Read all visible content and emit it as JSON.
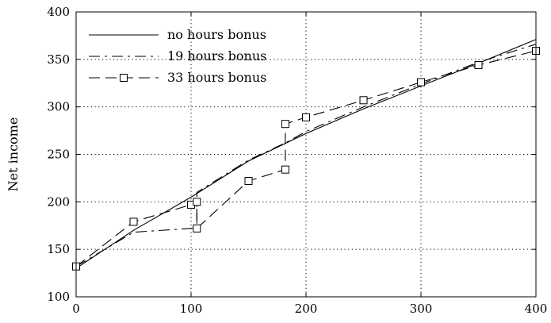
{
  "chart_data": {
    "type": "line",
    "title": "",
    "xlabel": "",
    "ylabel": "Net income",
    "xlim": [
      0,
      400
    ],
    "ylim": [
      100,
      400
    ],
    "x_ticks": [
      0,
      100,
      200,
      300,
      400
    ],
    "y_ticks": [
      100,
      150,
      200,
      250,
      300,
      350,
      400
    ],
    "grid": true,
    "legend_position": "top-left",
    "series": [
      {
        "name": "no hours bonus",
        "style": "solid",
        "marker": "none",
        "color": "#000000",
        "points": [
          [
            0,
            130
          ],
          [
            50,
            170
          ],
          [
            100,
            205
          ],
          [
            150,
            243
          ],
          [
            200,
            272
          ],
          [
            250,
            298
          ],
          [
            300,
            322
          ],
          [
            350,
            346
          ],
          [
            400,
            371
          ]
        ]
      },
      {
        "name": "19 hours bonus",
        "style": "dash-dot",
        "marker": "none",
        "color": "#000000",
        "points": [
          [
            0,
            132
          ],
          [
            50,
            168
          ],
          [
            100,
            172
          ],
          [
            105,
            173
          ],
          [
            105,
            210
          ],
          [
            150,
            244
          ],
          [
            182,
            262
          ],
          [
            200,
            274
          ],
          [
            250,
            300
          ],
          [
            300,
            324
          ],
          [
            350,
            347
          ],
          [
            400,
            366
          ]
        ]
      },
      {
        "name": "33 hours bonus",
        "style": "long-dash",
        "marker": "square",
        "color": "#000000",
        "points": [
          [
            0,
            132
          ],
          [
            50,
            179
          ],
          [
            100,
            197
          ],
          [
            105,
            200
          ],
          [
            105,
            172
          ],
          [
            150,
            222
          ],
          [
            182,
            234
          ],
          [
            182,
            282
          ],
          [
            200,
            289
          ],
          [
            250,
            307
          ],
          [
            300,
            326
          ],
          [
            350,
            344
          ],
          [
            400,
            359
          ]
        ]
      }
    ]
  }
}
